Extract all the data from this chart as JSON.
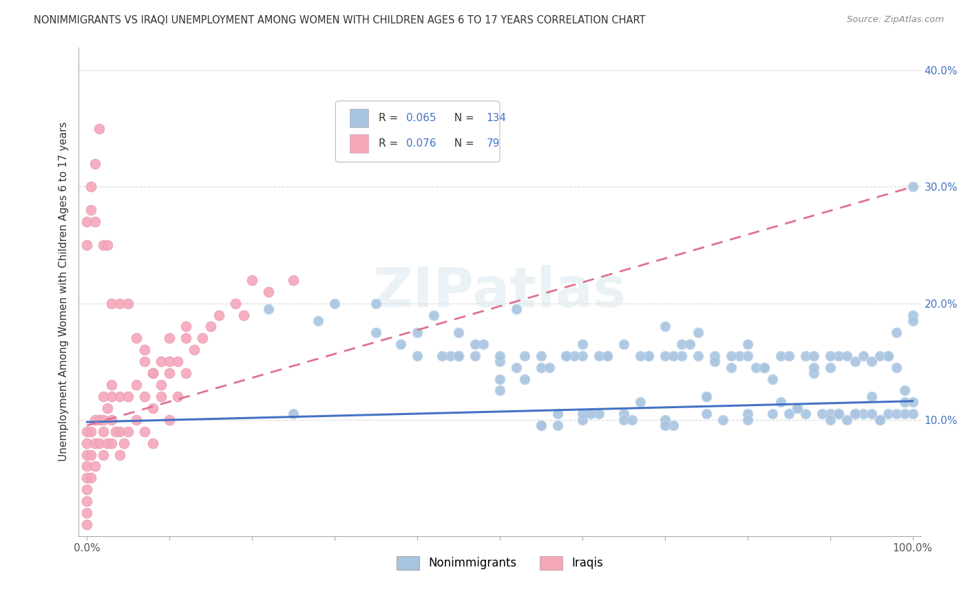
{
  "title": "NONIMMIGRANTS VS IRAQI UNEMPLOYMENT AMONG WOMEN WITH CHILDREN AGES 6 TO 17 YEARS CORRELATION CHART",
  "source": "Source: ZipAtlas.com",
  "ylabel": "Unemployment Among Women with Children Ages 6 to 17 years",
  "xlim": [
    0,
    1.0
  ],
  "ylim": [
    0.0,
    0.42
  ],
  "xtick_positions": [
    0.0,
    1.0
  ],
  "xticklabels": [
    "0.0%",
    "100.0%"
  ],
  "ytick_positions": [
    0.1,
    0.2,
    0.3,
    0.4
  ],
  "yticklabels": [
    "10.0%",
    "20.0%",
    "30.0%",
    "40.0%"
  ],
  "legend_labels": [
    "Nonimmigrants",
    "Iraqis"
  ],
  "nonimmigrants_R": 0.065,
  "nonimmigrants_N": 134,
  "iraqis_R": 0.076,
  "iraqis_N": 79,
  "nonimmigrants_color": "#a8c4e0",
  "iraqis_color": "#f4a7b9",
  "nonimmigrants_line_color": "#4472c4",
  "iraqis_line_color": "#e07090",
  "ni_x": [
    0.22,
    0.28,
    0.35,
    0.38,
    0.4,
    0.42,
    0.44,
    0.45,
    0.47,
    0.48,
    0.5,
    0.5,
    0.52,
    0.53,
    0.55,
    0.55,
    0.57,
    0.58,
    0.6,
    0.6,
    0.62,
    0.63,
    0.65,
    0.65,
    0.67,
    0.68,
    0.7,
    0.7,
    0.71,
    0.72,
    0.73,
    0.74,
    0.75,
    0.75,
    0.76,
    0.77,
    0.78,
    0.79,
    0.8,
    0.8,
    0.81,
    0.82,
    0.83,
    0.83,
    0.84,
    0.85,
    0.85,
    0.86,
    0.87,
    0.88,
    0.88,
    0.89,
    0.9,
    0.9,
    0.91,
    0.91,
    0.92,
    0.92,
    0.93,
    0.93,
    0.94,
    0.94,
    0.95,
    0.95,
    0.96,
    0.96,
    0.97,
    0.97,
    0.98,
    0.98,
    0.99,
    0.99,
    1.0,
    1.0,
    1.0,
    0.55,
    0.6,
    0.65,
    0.7,
    0.75,
    0.5,
    0.53,
    0.56,
    0.59,
    0.62,
    0.68,
    0.72,
    0.76,
    0.8,
    0.84,
    0.87,
    0.9,
    0.93,
    0.96,
    0.98,
    0.3,
    0.35,
    0.4,
    0.45,
    0.25,
    0.5,
    0.55,
    0.45,
    0.43,
    0.47,
    0.52,
    0.58,
    0.63,
    0.67,
    0.71,
    0.78,
    0.82,
    0.86,
    0.91,
    0.95,
    0.99,
    0.57,
    0.61,
    0.66,
    0.74,
    0.88,
    0.93,
    0.97,
    1.0,
    0.6,
    0.7,
    0.8,
    0.9,
    1.0,
    0.45
  ],
  "ni_y": [
    0.195,
    0.185,
    0.175,
    0.165,
    0.155,
    0.19,
    0.155,
    0.155,
    0.155,
    0.165,
    0.15,
    0.135,
    0.145,
    0.135,
    0.145,
    0.095,
    0.105,
    0.155,
    0.1,
    0.155,
    0.105,
    0.155,
    0.105,
    0.165,
    0.115,
    0.155,
    0.1,
    0.155,
    0.095,
    0.165,
    0.165,
    0.155,
    0.12,
    0.105,
    0.155,
    0.1,
    0.145,
    0.155,
    0.165,
    0.105,
    0.145,
    0.145,
    0.135,
    0.105,
    0.155,
    0.105,
    0.155,
    0.11,
    0.155,
    0.14,
    0.155,
    0.105,
    0.145,
    0.105,
    0.105,
    0.155,
    0.1,
    0.155,
    0.105,
    0.15,
    0.155,
    0.105,
    0.15,
    0.105,
    0.1,
    0.155,
    0.155,
    0.105,
    0.145,
    0.105,
    0.115,
    0.105,
    0.115,
    0.105,
    0.3,
    0.095,
    0.105,
    0.1,
    0.095,
    0.12,
    0.125,
    0.155,
    0.145,
    0.155,
    0.155,
    0.155,
    0.155,
    0.15,
    0.1,
    0.115,
    0.105,
    0.1,
    0.105,
    0.1,
    0.175,
    0.2,
    0.2,
    0.175,
    0.155,
    0.105,
    0.155,
    0.155,
    0.175,
    0.155,
    0.165,
    0.195,
    0.155,
    0.155,
    0.155,
    0.155,
    0.155,
    0.145,
    0.11,
    0.105,
    0.12,
    0.125,
    0.095,
    0.105,
    0.1,
    0.175,
    0.145,
    0.105,
    0.155,
    0.19,
    0.165,
    0.18,
    0.155,
    0.155,
    0.185,
    0.155
  ],
  "ir_x": [
    0.0,
    0.0,
    0.0,
    0.0,
    0.0,
    0.0,
    0.0,
    0.0,
    0.0,
    0.005,
    0.005,
    0.005,
    0.01,
    0.01,
    0.01,
    0.015,
    0.015,
    0.02,
    0.02,
    0.02,
    0.025,
    0.025,
    0.03,
    0.03,
    0.03,
    0.035,
    0.04,
    0.04,
    0.04,
    0.045,
    0.05,
    0.05,
    0.06,
    0.06,
    0.07,
    0.07,
    0.07,
    0.08,
    0.08,
    0.08,
    0.09,
    0.09,
    0.1,
    0.1,
    0.1,
    0.11,
    0.11,
    0.12,
    0.12,
    0.13,
    0.14,
    0.15,
    0.16,
    0.18,
    0.19,
    0.2,
    0.22,
    0.25,
    0.0,
    0.0,
    0.005,
    0.005,
    0.01,
    0.01,
    0.015,
    0.02,
    0.025,
    0.03,
    0.04,
    0.05,
    0.06,
    0.07,
    0.08,
    0.09,
    0.1,
    0.12,
    0.02,
    0.03
  ],
  "ir_y": [
    0.09,
    0.08,
    0.07,
    0.06,
    0.05,
    0.04,
    0.03,
    0.02,
    0.01,
    0.09,
    0.07,
    0.05,
    0.1,
    0.08,
    0.06,
    0.1,
    0.08,
    0.12,
    0.09,
    0.07,
    0.11,
    0.08,
    0.13,
    0.1,
    0.08,
    0.09,
    0.12,
    0.09,
    0.07,
    0.08,
    0.12,
    0.09,
    0.13,
    0.1,
    0.15,
    0.12,
    0.09,
    0.14,
    0.11,
    0.08,
    0.15,
    0.12,
    0.17,
    0.14,
    0.1,
    0.15,
    0.12,
    0.18,
    0.14,
    0.16,
    0.17,
    0.18,
    0.19,
    0.2,
    0.19,
    0.22,
    0.21,
    0.22,
    0.25,
    0.27,
    0.3,
    0.28,
    0.32,
    0.27,
    0.35,
    0.25,
    0.25,
    0.2,
    0.2,
    0.2,
    0.17,
    0.16,
    0.14,
    0.13,
    0.15,
    0.17,
    0.1,
    0.12
  ]
}
